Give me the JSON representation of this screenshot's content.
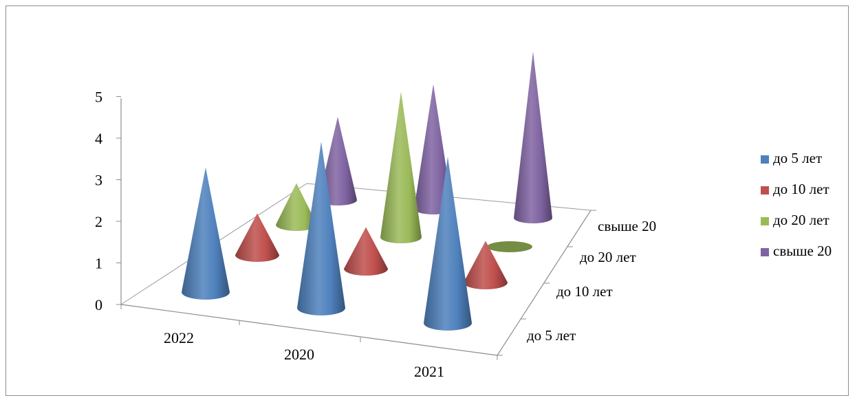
{
  "chart_data": {
    "type": "bar",
    "subtype": "3d-cone",
    "title": "",
    "categories": [
      "2022",
      "2020",
      "2021"
    ],
    "series": [
      {
        "name": "до 5 лет",
        "values": [
          3,
          4,
          4
        ],
        "color": "#4f81bd"
      },
      {
        "name": "до 10 лет",
        "values": [
          1,
          1,
          1
        ],
        "color": "#c0504d"
      },
      {
        "name": "до 20 лет",
        "values": [
          1,
          3.5,
          0
        ],
        "color": "#9bbb59"
      },
      {
        "name": "свыше 20",
        "values": [
          2,
          3,
          4
        ],
        "color": "#8064a2"
      }
    ],
    "depth_labels": [
      "до 5 лет",
      "до 10 лет",
      "до 20 лет",
      "свыше 20"
    ],
    "y_ticks": [
      "0",
      "1",
      "2",
      "3",
      "4",
      "5"
    ],
    "ylim": [
      0,
      5
    ],
    "legend_position": "right",
    "grid": false
  }
}
